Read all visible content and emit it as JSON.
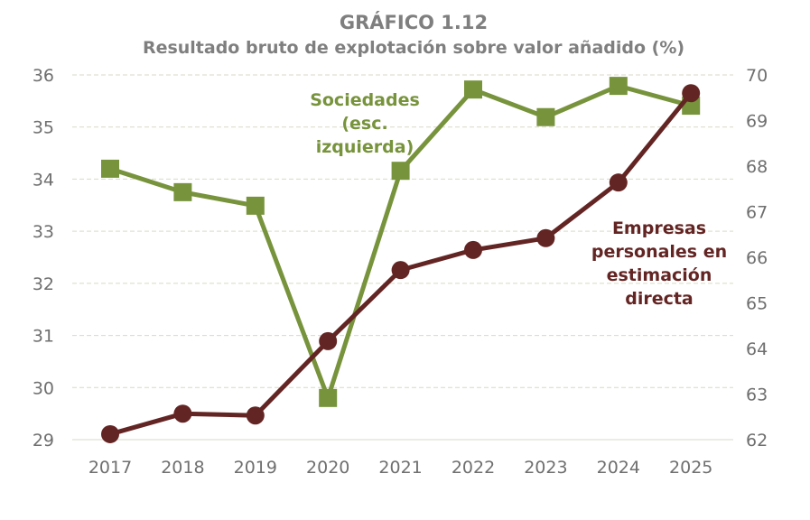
{
  "chart_data": {
    "type": "line",
    "title": "GRÁFICO 1.12",
    "subtitle": "Resultado bruto de explotación sobre valor añadido (%)",
    "categories": [
      "2017",
      "2018",
      "2019",
      "2020",
      "2021",
      "2022",
      "2023",
      "2024",
      "2025"
    ],
    "left_axis": {
      "ylim": [
        29,
        36
      ],
      "ticks": [
        "29",
        "30",
        "31",
        "32",
        "33",
        "34",
        "35",
        "36"
      ]
    },
    "right_axis": {
      "ylim": [
        62,
        70
      ],
      "ticks": [
        "62",
        "63",
        "64",
        "65",
        "66",
        "67",
        "68",
        "69",
        "70"
      ]
    },
    "grid": "horizontal dashed",
    "series": [
      {
        "label_lines": [
          "Sociedades",
          "(esc.",
          "izquierda)"
        ],
        "axis": "left",
        "marker": "square",
        "color": "#77933c",
        "values": [
          34.2,
          33.75,
          33.49,
          29.8,
          34.16,
          35.72,
          35.19,
          35.79,
          35.41
        ]
      },
      {
        "label_lines": [
          "Empresas",
          "personales en",
          "estimación",
          "directa"
        ],
        "axis": "right",
        "marker": "circle",
        "color": "#632523",
        "values": [
          62.12,
          62.57,
          62.53,
          64.16,
          65.72,
          66.16,
          66.42,
          67.64,
          69.6
        ]
      }
    ]
  }
}
